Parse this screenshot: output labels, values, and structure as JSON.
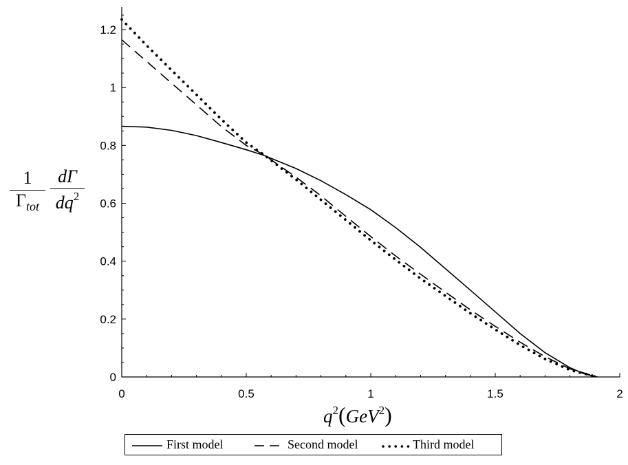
{
  "chart_data": {
    "type": "line",
    "title": "",
    "xlabel": {
      "q": "q",
      "exp": "2",
      "open": "(",
      "unit": "GeV",
      "unit_exp": "2",
      "close": ")"
    },
    "ylabel": {
      "left_numerator": "1",
      "left_denominator": "Γ",
      "left_denominator_sub": "tot",
      "right_numerator": "dΓ",
      "right_denominator": "dq",
      "right_denominator_exp": "2"
    },
    "xlim": [
      0,
      2
    ],
    "ylim": [
      0,
      1.25
    ],
    "xticks": [
      0,
      0.5,
      1,
      1.5,
      2
    ],
    "xtick_labels": [
      "0",
      "0.5",
      "1",
      "1.5",
      "2"
    ],
    "yticks": [
      0,
      0.2,
      0.4,
      0.6,
      0.8,
      1,
      1.2
    ],
    "ytick_labels": [
      "0",
      "0.2",
      "0.4",
      "0.6",
      "0.8",
      "1",
      "1.2"
    ],
    "grid": false,
    "legend_position": "bottom",
    "series": [
      {
        "name": "First model",
        "style": "solid",
        "color": "#000000",
        "x": [
          0,
          0.1,
          0.2,
          0.3,
          0.4,
          0.5,
          0.57,
          0.7,
          0.8,
          0.9,
          1.0,
          1.1,
          1.2,
          1.3,
          1.4,
          1.5,
          1.6,
          1.7,
          1.8,
          1.86,
          1.91
        ],
        "y": [
          0.866,
          0.863,
          0.852,
          0.834,
          0.81,
          0.785,
          0.766,
          0.72,
          0.678,
          0.63,
          0.578,
          0.516,
          0.448,
          0.374,
          0.3,
          0.225,
          0.15,
          0.084,
          0.032,
          0.01,
          0.0
        ]
      },
      {
        "name": "Second model",
        "style": "dashed",
        "color": "#000000",
        "x": [
          0,
          0.1,
          0.2,
          0.3,
          0.4,
          0.5,
          0.57,
          0.7,
          0.8,
          0.9,
          1.0,
          1.1,
          1.2,
          1.3,
          1.4,
          1.5,
          1.6,
          1.7,
          1.8,
          1.91
        ],
        "y": [
          1.165,
          1.09,
          1.015,
          0.94,
          0.865,
          0.8,
          0.768,
          0.69,
          0.626,
          0.555,
          0.485,
          0.418,
          0.355,
          0.293,
          0.232,
          0.175,
          0.12,
          0.07,
          0.028,
          0.0
        ]
      },
      {
        "name": "Third model",
        "style": "dotted",
        "color": "#000000",
        "x": [
          0,
          0.1,
          0.2,
          0.3,
          0.4,
          0.5,
          0.57,
          0.7,
          0.8,
          0.9,
          1.0,
          1.1,
          1.2,
          1.3,
          1.4,
          1.5,
          1.6,
          1.7,
          1.8,
          1.91
        ],
        "y": [
          1.235,
          1.145,
          1.06,
          0.975,
          0.89,
          0.81,
          0.768,
          0.682,
          0.612,
          0.542,
          0.472,
          0.405,
          0.34,
          0.28,
          0.22,
          0.164,
          0.11,
          0.062,
          0.024,
          0.0
        ]
      }
    ]
  }
}
